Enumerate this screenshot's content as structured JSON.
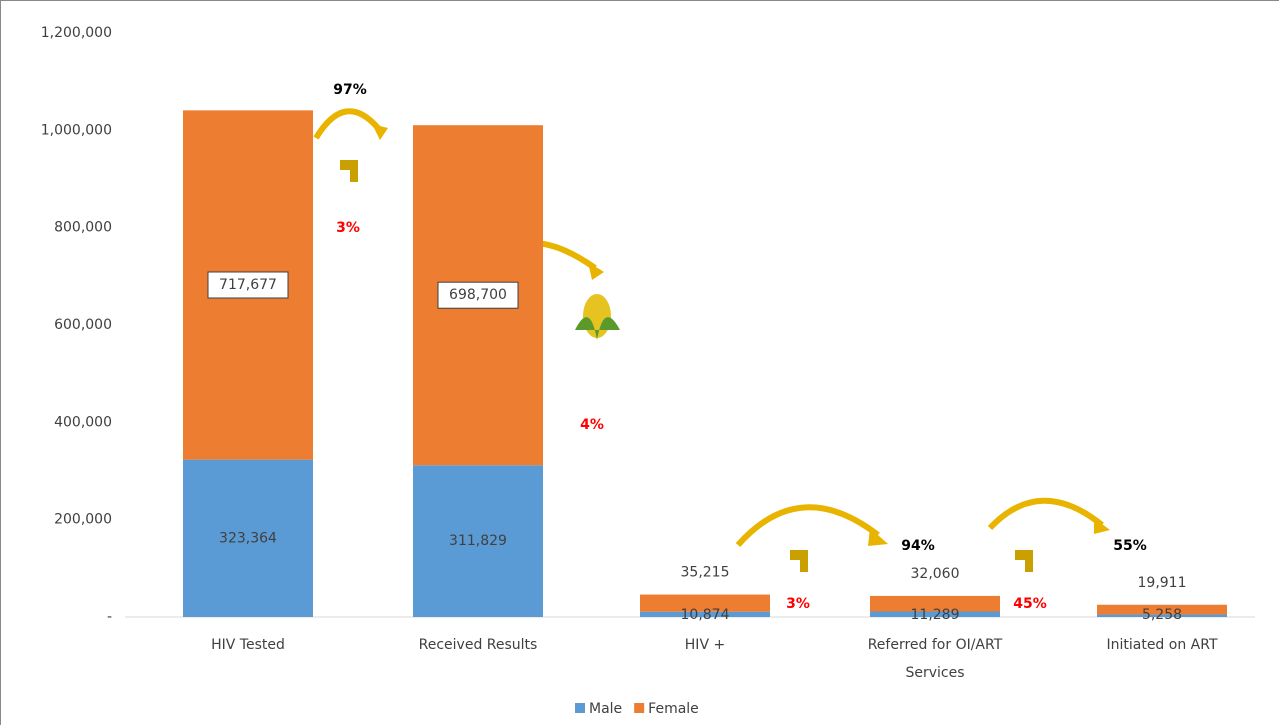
{
  "chart_data": {
    "type": "stacked-bar",
    "categories": [
      "HIV Tested",
      "Received Results",
      "HIV +",
      "Referred for OI/ART Services",
      "Initiated on ART"
    ],
    "series": [
      {
        "name": "Male",
        "color": "#5b9bd5",
        "values": [
          323364,
          311829,
          10874,
          11289,
          5258
        ],
        "value_labels": [
          "323,364",
          "311,829",
          "10,874",
          "11,289",
          "5,258"
        ]
      },
      {
        "name": "Female",
        "color": "#ed7d31",
        "values": [
          717677,
          698700,
          35215,
          32060,
          19911
        ],
        "value_labels": [
          "717,677",
          "698,700",
          "35,215",
          "32,060",
          "19,911"
        ]
      }
    ],
    "ylim": [
      0,
      1200000
    ],
    "yticks": [
      {
        "value": 0,
        "label": "-"
      },
      {
        "value": 200000,
        "label": "200,000"
      },
      {
        "value": 400000,
        "label": "400,000"
      },
      {
        "value": 600000,
        "label": "600,000"
      },
      {
        "value": 800000,
        "label": "800,000"
      },
      {
        "value": 1000000,
        "label": "1,000,000"
      },
      {
        "value": 1200000,
        "label": "1,200,000"
      }
    ],
    "annotations": [
      {
        "text": "97%",
        "color": "#000000"
      },
      {
        "text": "3%",
        "color": "#ff0000"
      },
      {
        "text": "4%",
        "color": "#ff0000"
      },
      {
        "text": "3%",
        "color": "#ff0000"
      },
      {
        "text": "94%",
        "color": "#000000"
      },
      {
        "text": "45%",
        "color": "#ff0000"
      },
      {
        "text": "55%",
        "color": "#000000"
      }
    ],
    "legend": "bottom"
  }
}
